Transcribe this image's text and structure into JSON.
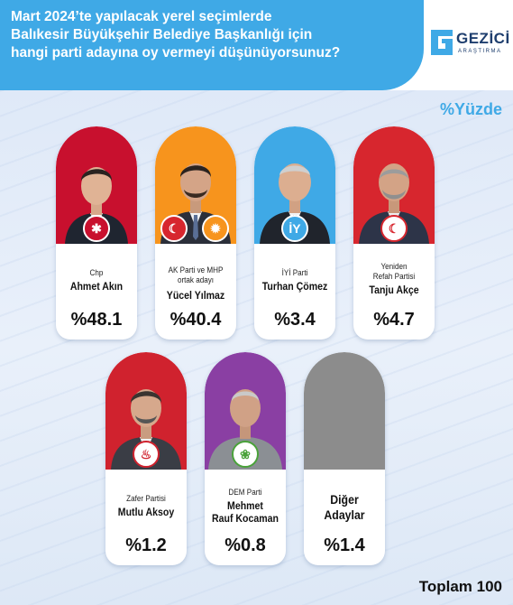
{
  "header": {
    "question_lines": [
      "Mart 2024’te yapılacak yerel seçimlerde",
      "Balıkesir Büyükşehir Belediye Başkanlığı için",
      "hangi parti adayına oy vermeyi düşünüyorsunuz?"
    ],
    "logo_text": "GEZİCİ",
    "logo_sub": "ARAŞTIRMA"
  },
  "unit_label": "%Yüzde",
  "total_label": "Toplam 100",
  "colors": {
    "header": "#3fa9e6",
    "chp": "#c8102e",
    "akp": "#f7941d",
    "iyi": "#3fa9e6",
    "yrp": "#d7262e",
    "zafer": "#d0222e",
    "dem": "#8a3fa3",
    "other": "#8c8c8c"
  },
  "candidates": [
    {
      "party": "Chp",
      "name": "Ahmet Akın",
      "value_label": "%48.1"
    },
    {
      "party": "AK Parti ve MHP ortak adayı",
      "name": "Yücel Yılmaz",
      "value_label": "%40.4"
    },
    {
      "party": "İYİ Parti",
      "name": "Turhan Çömez",
      "value_label": "%3.4"
    },
    {
      "party": "Yeniden Refah Partisi",
      "name": "Tanju Akçe",
      "value_label": "%4.7"
    },
    {
      "party": "Zafer Partisi",
      "name": "Mutlu Aksoy",
      "value_label": "%1.2"
    },
    {
      "party": "DEM Parti",
      "name": "Mehmet Rauf Kocaman",
      "value_label": "%0.8"
    },
    {
      "party": "",
      "name": "Diğer Adaylar",
      "value_label": "%1.4"
    }
  ],
  "chart_data": {
    "type": "bar",
    "categories": [
      "Ahmet Akın",
      "Yücel Yılmaz",
      "Turhan Çömez",
      "Tanju Akçe",
      "Mutlu Aksoy",
      "Mehmet Rauf Kocaman",
      "Diğer Adaylar"
    ],
    "values": [
      48.1,
      40.4,
      3.4,
      4.7,
      1.2,
      0.8,
      1.4
    ],
    "title": "Mart 2024’te yapılacak yerel seçimlerde Balıkesir Büyükşehir Belediye Başkanlığı için hangi parti adayına oy vermeyi düşünüyorsunuz?",
    "ylabel": "%Yüzde"
  }
}
